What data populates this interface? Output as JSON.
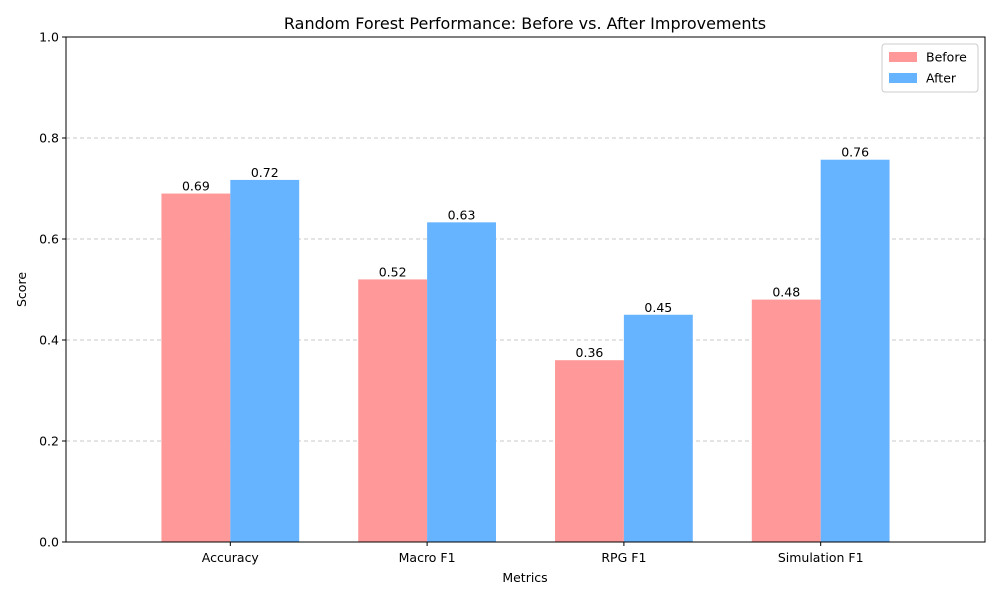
{
  "chart_data": {
    "type": "bar",
    "title": "Random Forest Performance: Before vs. After Improvements",
    "xlabel": "Metrics",
    "ylabel": "Score",
    "categories": [
      "Accuracy",
      "Macro F1",
      "RPG F1",
      "Simulation F1"
    ],
    "series": [
      {
        "name": "Before",
        "color": "#ff9999",
        "values": [
          0.69,
          0.52,
          0.36,
          0.48
        ]
      },
      {
        "name": "After",
        "color": "#66b3ff",
        "values": [
          0.717,
          0.633,
          0.45,
          0.757
        ]
      }
    ],
    "data_labels": [
      [
        "0.69",
        "0.52",
        "0.36",
        "0.48"
      ],
      [
        "0.72",
        "0.63",
        "0.45",
        "0.76"
      ]
    ],
    "ylim": [
      0,
      1.0
    ],
    "yticks": [
      "0.0",
      "0.2",
      "0.4",
      "0.6",
      "0.8",
      "1.0"
    ],
    "ytick_values": [
      0,
      0.2,
      0.4,
      0.6,
      0.8,
      1.0
    ],
    "grid": "y-dashed",
    "legend_position": "top-right"
  }
}
